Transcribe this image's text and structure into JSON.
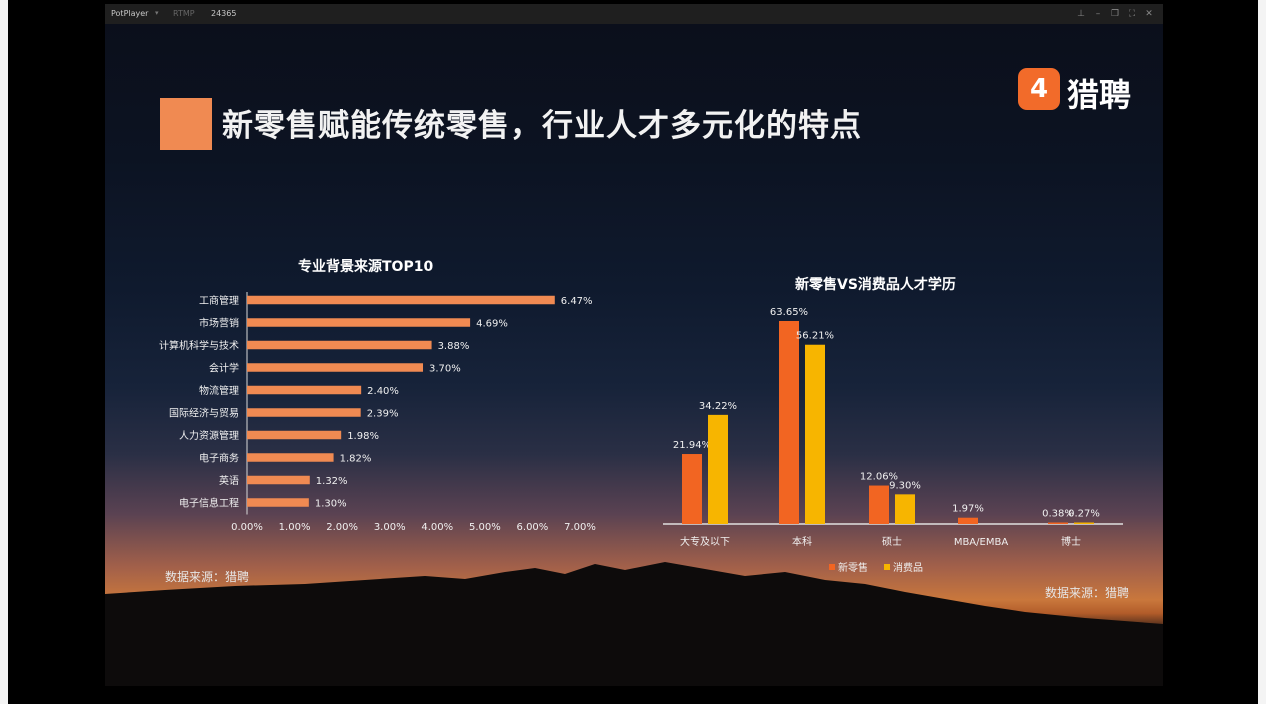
{
  "player": {
    "app_name": "PotPlayer",
    "protocol": "RTMP",
    "stream_id": "24365",
    "controls": [
      "pin-icon",
      "minimize-icon",
      "restore-icon",
      "fullscreen-icon",
      "close-icon"
    ]
  },
  "slide": {
    "title": "新零售赋能传统零售，行业人才多元化的特点",
    "accent_color": "#f08a52",
    "logo": {
      "glyph": "4",
      "text": "猎聘",
      "color": "#f26b2a"
    },
    "left_source": "数据来源：猎聘",
    "right_source": "数据来源：猎聘"
  },
  "chart_data": [
    {
      "type": "bar",
      "orientation": "horizontal",
      "title": "专业背景来源TOP10",
      "categories": [
        "工商管理",
        "市场营销",
        "计算机科学与技术",
        "会计学",
        "物流管理",
        "国际经济与贸易",
        "人力资源管理",
        "电子商务",
        "英语",
        "电子信息工程"
      ],
      "values": [
        6.47,
        4.69,
        3.88,
        3.7,
        2.4,
        2.39,
        1.98,
        1.82,
        1.32,
        1.3
      ],
      "labels": [
        "6.47%",
        "4.69%",
        "3.88%",
        "3.70%",
        "2.40%",
        "2.39%",
        "1.98%",
        "1.82%",
        "1.32%",
        "1.30%"
      ],
      "xlim": [
        0,
        7
      ],
      "xticks": [
        "0.00%",
        "1.00%",
        "2.00%",
        "3.00%",
        "4.00%",
        "5.00%",
        "6.00%",
        "7.00%"
      ],
      "color": "#f08a52",
      "grid": false
    },
    {
      "type": "bar",
      "title": "新零售VS消费品人才学历",
      "categories": [
        "大专及以下",
        "本科",
        "硕士",
        "MBA/EMBA",
        "博士"
      ],
      "series": [
        {
          "name": "新零售",
          "values": [
            21.94,
            63.65,
            12.06,
            1.97,
            0.38
          ],
          "labels": [
            "21.94%",
            "63.65%",
            "12.06%",
            "1.97%",
            "0.38%"
          ],
          "color": "#f26522"
        },
        {
          "name": "消费品",
          "values": [
            34.22,
            56.21,
            9.3,
            null,
            0.27
          ],
          "labels": [
            "34.22%",
            "56.21%",
            "9.30%",
            "",
            "0.27%"
          ],
          "color": "#f7b500"
        }
      ],
      "ylim": [
        0,
        70
      ],
      "legend": "bottom",
      "grid": false
    }
  ]
}
